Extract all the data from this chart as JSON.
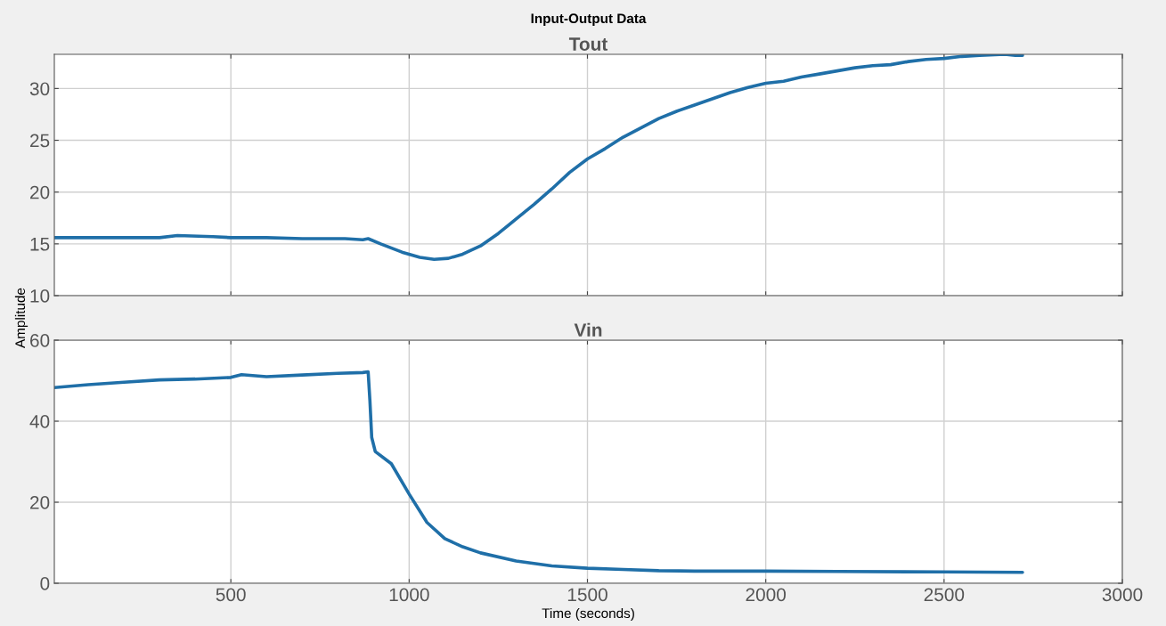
{
  "chart_data": [
    {
      "type": "line",
      "title": "Tout",
      "ylabel": "Amplitude",
      "annotations": [
        "Input-Output Data"
      ],
      "xlim": [
        5,
        3000
      ],
      "ylim": [
        10,
        33.3
      ],
      "xticks": [
        500,
        1000,
        1500,
        2000,
        2500,
        3000
      ],
      "yticks": [
        10,
        15,
        20,
        25,
        30
      ],
      "grid": true,
      "tick_labels": "y",
      "series": [
        {
          "color": "#1f6fa8",
          "x": [
            5,
            300,
            350,
            450,
            500,
            600,
            700,
            820,
            870,
            885,
            920,
            980,
            1030,
            1070,
            1110,
            1150,
            1200,
            1250,
            1300,
            1350,
            1400,
            1450,
            1500,
            1550,
            1600,
            1650,
            1700,
            1750,
            1800,
            1850,
            1900,
            1950,
            2000,
            2050,
            2100,
            2150,
            2200,
            2250,
            2300,
            2350,
            2400,
            2450,
            2500,
            2550,
            2600,
            2670,
            2700,
            2720
          ],
          "values": [
            15.6,
            15.6,
            15.8,
            15.7,
            15.6,
            15.6,
            15.5,
            15.5,
            15.4,
            15.5,
            15.0,
            14.2,
            13.7,
            13.5,
            13.6,
            14.0,
            14.8,
            16.0,
            17.4,
            18.8,
            20.3,
            21.9,
            23.2,
            24.2,
            25.3,
            26.2,
            27.1,
            27.8,
            28.4,
            29.0,
            29.6,
            30.1,
            30.5,
            30.7,
            31.1,
            31.4,
            31.7,
            32.0,
            32.2,
            32.3,
            32.6,
            32.8,
            32.9,
            33.1,
            33.2,
            33.3,
            33.2,
            33.2
          ]
        }
      ]
    },
    {
      "type": "line",
      "title": "Vin",
      "xlabel": "Time (seconds)",
      "xlim": [
        5,
        3000
      ],
      "ylim": [
        0,
        60
      ],
      "xticks": [
        500,
        1000,
        1500,
        2000,
        2500,
        3000
      ],
      "yticks": [
        0,
        20,
        40,
        60
      ],
      "grid": true,
      "series": [
        {
          "color": "#1f6fa8",
          "x": [
            5,
            100,
            200,
            300,
            400,
            500,
            530,
            600,
            700,
            800,
            870,
            885,
            890,
            895,
            905,
            950,
            1000,
            1050,
            1100,
            1150,
            1200,
            1300,
            1400,
            1500,
            1600,
            1700,
            1800,
            2000,
            2200,
            2500,
            2720
          ],
          "values": [
            48.3,
            49,
            49.6,
            50.2,
            50.4,
            50.8,
            51.5,
            51.0,
            51.4,
            51.8,
            52.0,
            52.2,
            45,
            36,
            32.5,
            29.5,
            22,
            15,
            11,
            9,
            7.5,
            5.5,
            4.3,
            3.7,
            3.4,
            3.1,
            3.0,
            3.0,
            2.9,
            2.8,
            2.7
          ]
        }
      ]
    }
  ]
}
